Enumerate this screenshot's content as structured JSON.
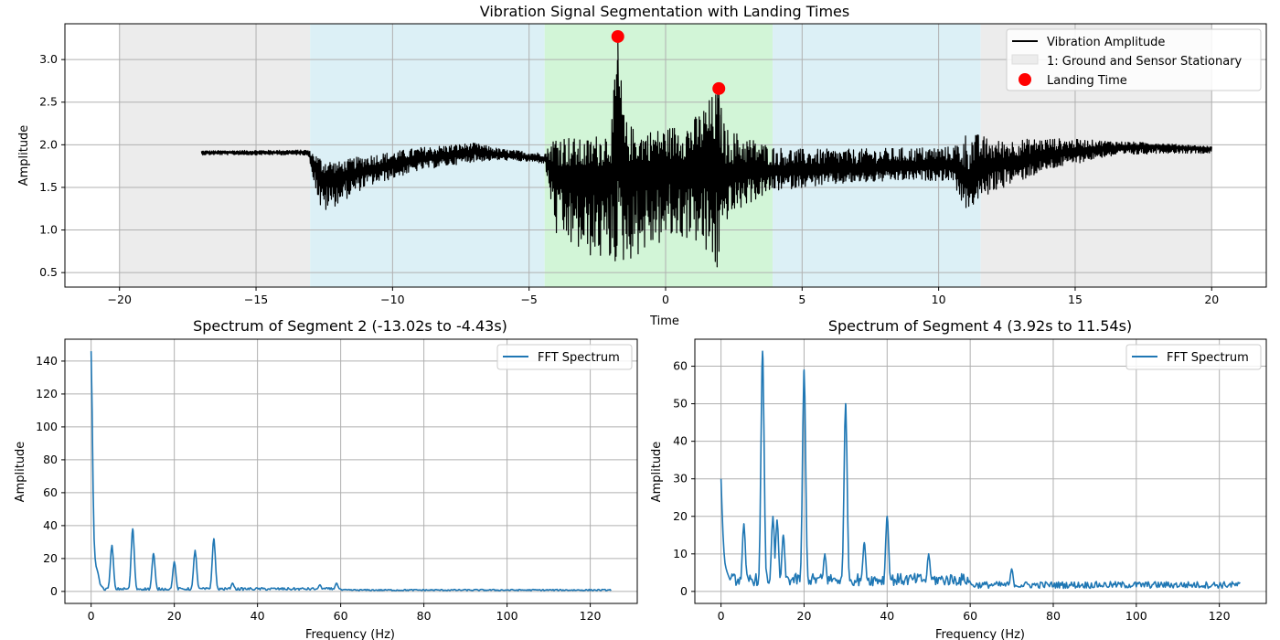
{
  "chart_data": [
    {
      "type": "line",
      "title": "Vibration Signal Segmentation with Landing Times",
      "xlabel": "Time",
      "ylabel": "Amplitude",
      "xlim": [
        -22,
        22
      ],
      "ylim": [
        0.33,
        3.42
      ],
      "xticks": [
        -20,
        -15,
        -10,
        -5,
        0,
        5,
        10,
        15,
        20
      ],
      "xtick_labels": [
        "−20",
        "−15",
        "−10",
        "−5",
        "0",
        "5",
        "10",
        "15",
        "20"
      ],
      "yticks": [
        0.5,
        1.0,
        1.5,
        2.0,
        2.5,
        3.0
      ],
      "ytick_labels": [
        "0.5",
        "1.0",
        "1.5",
        "2.0",
        "2.5",
        "3.0"
      ],
      "grid": true,
      "legend_position": "top-right",
      "legend": [
        "Vibration Amplitude",
        "1: Ground and Sensor Stationary",
        "Landing Time"
      ],
      "segments": [
        {
          "start": -20.0,
          "end": -13.02,
          "color": "#ececec"
        },
        {
          "start": -13.02,
          "end": -4.43,
          "color": "#dcf0f6"
        },
        {
          "start": -4.43,
          "end": 3.92,
          "color": "#d2f5d7"
        },
        {
          "start": 3.92,
          "end": 11.54,
          "color": "#dcf0f6"
        },
        {
          "start": 11.54,
          "end": 20.0,
          "color": "#ececec"
        }
      ],
      "series": [
        {
          "name": "Vibration Amplitude",
          "color": "#000000",
          "x": [
            -17,
            -13.1,
            -12.6,
            -12.0,
            -11.0,
            -10.0,
            -9.0,
            -8.0,
            -7.0,
            -6.0,
            -5.0,
            -4.43,
            -4.0,
            -3.0,
            -2.0,
            -1.75,
            -1.5,
            -1.0,
            0.0,
            1.0,
            1.9,
            2.2,
            3.0,
            3.92,
            5.0,
            7.0,
            9.0,
            10.5,
            11.0,
            11.54,
            12.0,
            14.0,
            16.0,
            18.0,
            20.0
          ],
          "center": [
            1.91,
            1.91,
            1.6,
            1.62,
            1.7,
            1.76,
            1.83,
            1.87,
            1.92,
            1.88,
            1.85,
            1.84,
            1.65,
            1.6,
            1.66,
            1.9,
            1.65,
            1.7,
            1.72,
            1.7,
            1.8,
            1.65,
            1.68,
            1.69,
            1.7,
            1.72,
            1.74,
            1.76,
            1.55,
            1.7,
            1.75,
            1.88,
            1.96,
            1.98,
            1.95
          ],
          "lower": [
            1.88,
            1.88,
            1.18,
            1.3,
            1.5,
            1.6,
            1.7,
            1.75,
            1.8,
            1.82,
            1.8,
            1.78,
            0.9,
            0.7,
            0.6,
            0.6,
            0.6,
            0.7,
            0.85,
            0.9,
            0.45,
            1.1,
            1.3,
            1.45,
            1.5,
            1.55,
            1.58,
            1.58,
            1.22,
            1.35,
            1.45,
            1.7,
            1.85,
            1.9,
            1.9
          ],
          "upper": [
            1.93,
            1.94,
            1.85,
            1.8,
            1.88,
            1.92,
            1.97,
            2.0,
            2.02,
            1.95,
            1.92,
            1.9,
            2.15,
            2.05,
            2.2,
            3.27,
            2.3,
            2.15,
            2.2,
            2.3,
            2.66,
            2.2,
            2.1,
            1.98,
            1.95,
            1.95,
            1.97,
            1.98,
            2.15,
            2.12,
            2.05,
            2.08,
            2.05,
            2.02,
            1.98
          ]
        }
      ],
      "landing_times": [
        {
          "x": -1.75,
          "y": 3.27
        },
        {
          "x": 1.95,
          "y": 2.66
        }
      ]
    },
    {
      "type": "line",
      "title": "Spectrum of Segment 2 (-13.02s to -4.43s)",
      "xlabel": "Frequency (Hz)",
      "ylabel": "Amplitude",
      "xlim": [
        -6.3,
        131.3
      ],
      "ylim": [
        -7.3,
        153.3
      ],
      "xticks": [
        0,
        20,
        40,
        60,
        80,
        100,
        120
      ],
      "xtick_labels": [
        "0",
        "20",
        "40",
        "60",
        "80",
        "100",
        "120"
      ],
      "yticks": [
        0,
        20,
        40,
        60,
        80,
        100,
        120,
        140
      ],
      "ytick_labels": [
        "0",
        "20",
        "40",
        "60",
        "80",
        "100",
        "120",
        "140"
      ],
      "grid": true,
      "legend_position": "top-right",
      "legend": [
        "FFT Spectrum"
      ],
      "series": [
        {
          "name": "FFT Spectrum",
          "color": "#1f77b4",
          "base": 1.2,
          "start": [
            [
              0,
              146
            ],
            [
              0.2,
              120
            ],
            [
              0.4,
              75
            ],
            [
              0.6,
              42
            ],
            [
              0.8,
              25
            ],
            [
              1.1,
              16
            ],
            [
              1.6,
              12
            ],
            [
              2.2,
              4
            ],
            [
              3.0,
              2
            ]
          ],
          "peaks": [
            [
              5,
              28
            ],
            [
              10,
              38
            ],
            [
              15,
              23
            ],
            [
              20,
              18
            ],
            [
              25,
              25
            ],
            [
              29.5,
              32
            ],
            [
              34,
              5
            ],
            [
              55,
              4
            ],
            [
              59,
              5
            ]
          ],
          "xmax": 125
        }
      ]
    },
    {
      "type": "line",
      "title": "Spectrum of Segment 4 (3.92s to 11.54s)",
      "xlabel": "Frequency (Hz)",
      "ylabel": "Amplitude",
      "xlim": [
        -6.3,
        131.3
      ],
      "ylim": [
        -3.2,
        67.2
      ],
      "xticks": [
        0,
        20,
        40,
        60,
        80,
        100,
        120
      ],
      "xtick_labels": [
        "0",
        "20",
        "40",
        "60",
        "80",
        "100",
        "120"
      ],
      "yticks": [
        0,
        10,
        20,
        30,
        40,
        50,
        60
      ],
      "ytick_labels": [
        "0",
        "10",
        "20",
        "30",
        "40",
        "50",
        "60"
      ],
      "grid": true,
      "legend_position": "top-right",
      "legend": [
        "FFT Spectrum"
      ],
      "series": [
        {
          "name": "FFT Spectrum",
          "color": "#1f77b4",
          "base": 2.5,
          "start": [
            [
              0,
              30
            ],
            [
              0.3,
              20
            ],
            [
              0.6,
              12
            ],
            [
              1.0,
              7
            ],
            [
              1.5,
              5
            ],
            [
              2.2,
              3
            ]
          ],
          "peaks": [
            [
              5.5,
              18
            ],
            [
              10,
              64
            ],
            [
              12.5,
              20
            ],
            [
              13.5,
              19
            ],
            [
              15,
              15
            ],
            [
              20,
              59
            ],
            [
              25,
              10
            ],
            [
              30,
              50
            ],
            [
              34.5,
              13
            ],
            [
              40,
              20
            ],
            [
              50,
              10
            ],
            [
              70,
              6
            ]
          ],
          "xmax": 125
        }
      ]
    }
  ]
}
